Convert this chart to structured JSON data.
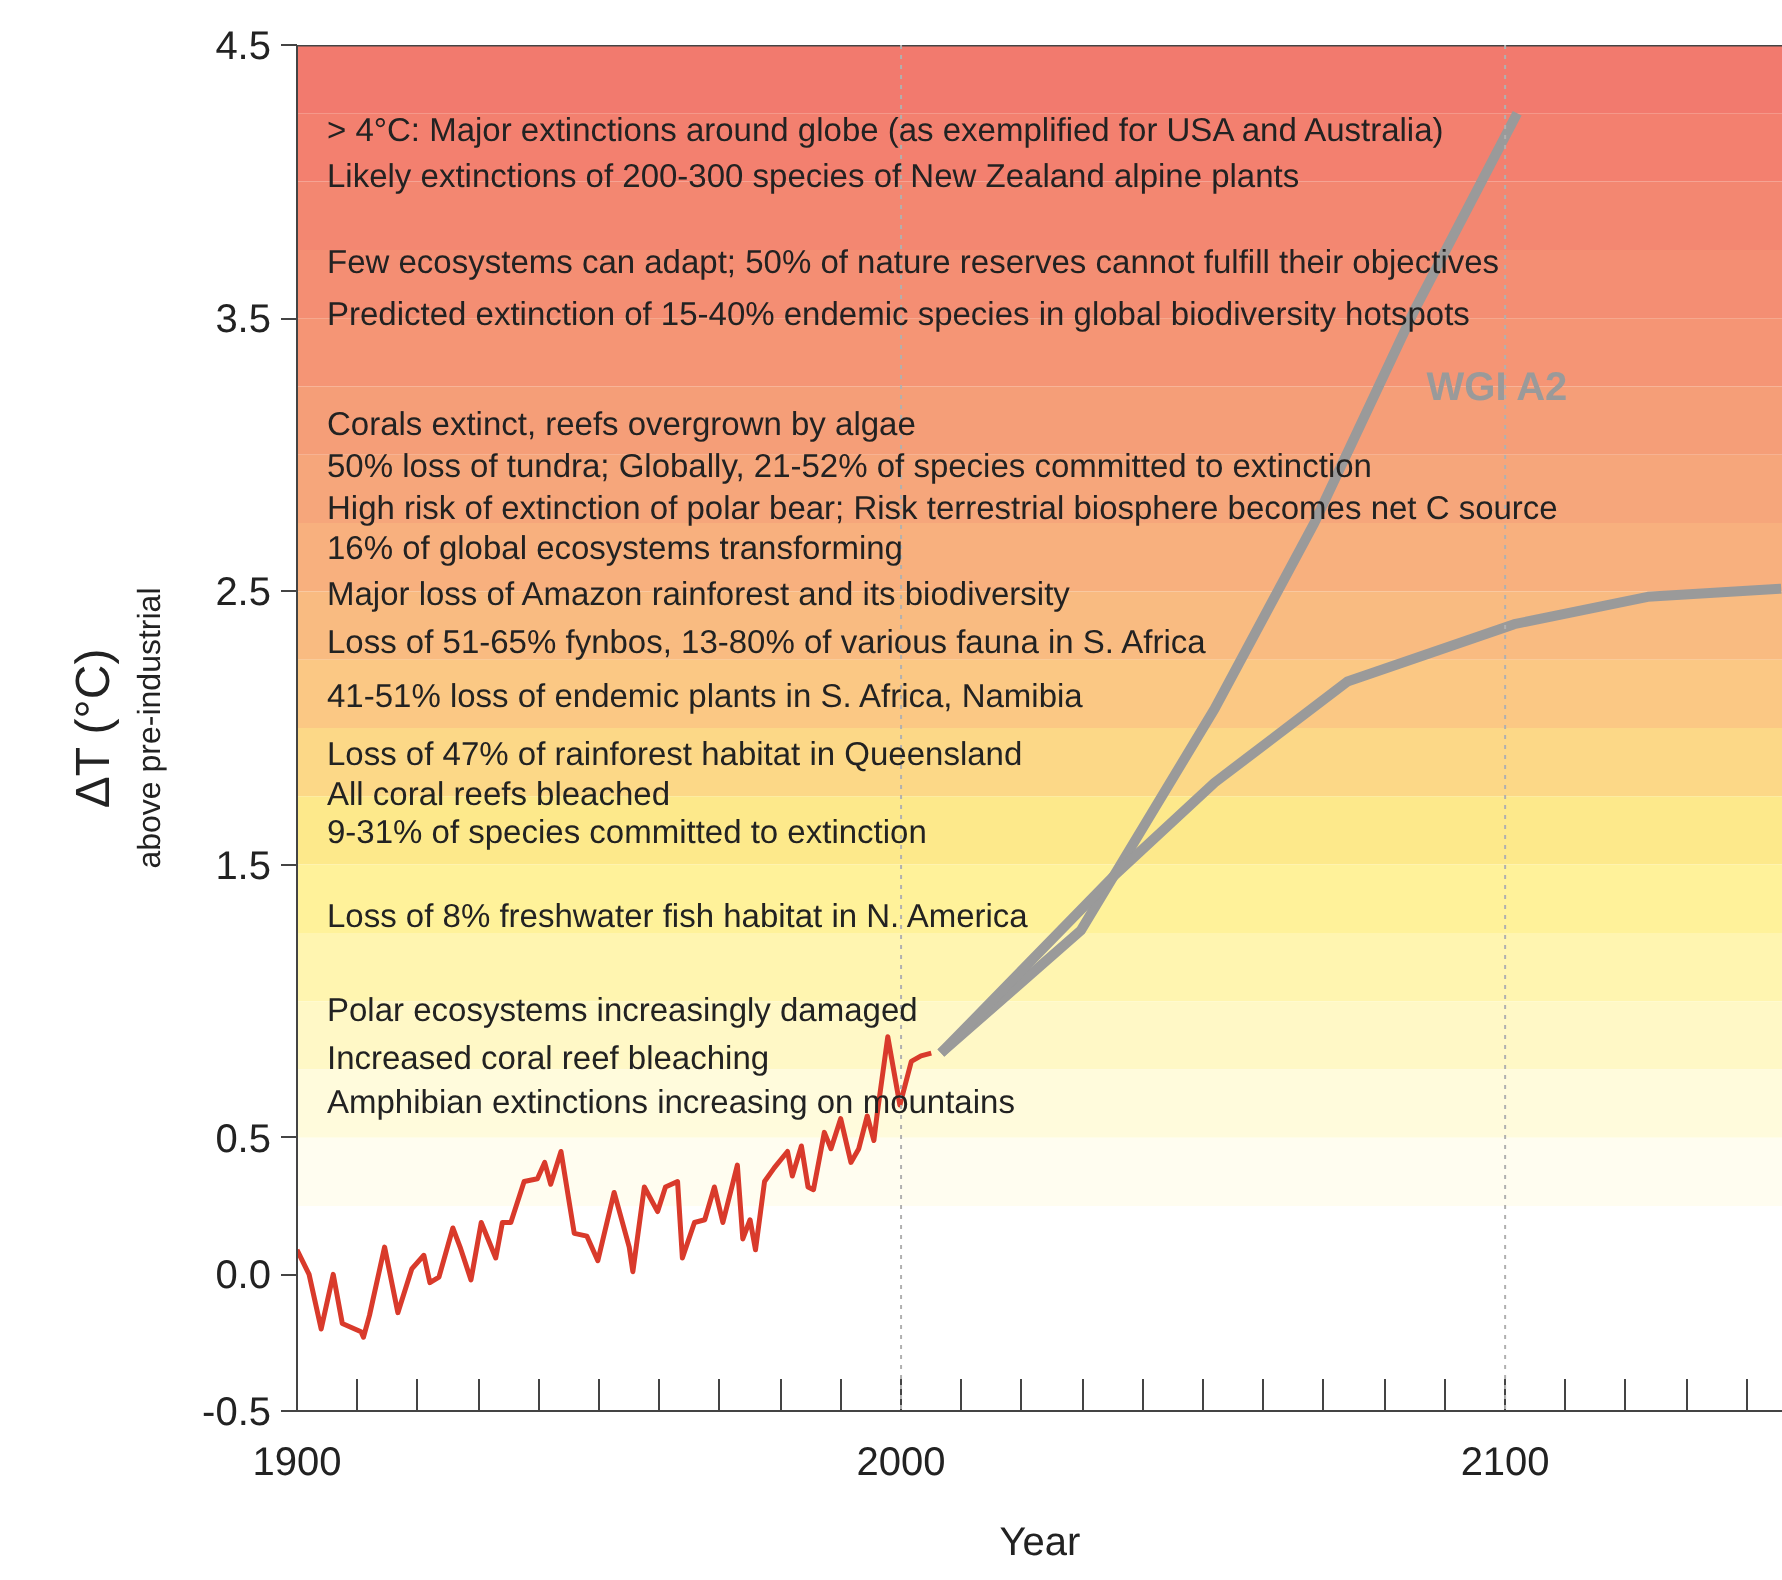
{
  "chart_data": {
    "type": "line",
    "xlabel": "Year",
    "ylabel": "ΔT (°C)",
    "xlim": [
      1900,
      2146
    ],
    "ylim": [
      -0.5,
      4.5
    ],
    "xticks": [
      1900,
      {
        "value": 1910,
        "label": null
      },
      {
        "value": 1920,
        "label": null
      },
      {
        "value": 1930,
        "label": null
      },
      {
        "value": 1940,
        "label": null
      },
      {
        "value": 1950,
        "label": null
      },
      {
        "value": 1960,
        "label": null
      },
      {
        "value": 1970,
        "label": null
      },
      {
        "value": 1980,
        "label": null
      },
      {
        "value": 1990,
        "label": null
      },
      2000,
      {
        "value": 2010,
        "label": null
      },
      {
        "value": 2020,
        "label": null
      },
      {
        "value": 2030,
        "label": null
      },
      {
        "value": 2040,
        "label": null
      },
      {
        "value": 2050,
        "label": null
      },
      {
        "value": 2060,
        "label": null
      },
      {
        "value": 2070,
        "label": null
      },
      {
        "value": 2080,
        "label": null
      },
      {
        "value": 2090,
        "label": null
      },
      2100,
      {
        "value": 2110,
        "label": null
      },
      {
        "value": 2120,
        "label": null
      },
      {
        "value": 2130,
        "label": null
      },
      {
        "value": 2140,
        "label": null
      }
    ],
    "yticks": [
      -0.5,
      {
        "value": 0,
        "label": "0.0"
      },
      0.5,
      1.5,
      2.5,
      3.5,
      4.5
    ],
    "grid": false,
    "marker": "none",
    "line_style": "solid",
    "series": [
      {
        "color": "#d93a2b",
        "x": [
          1900,
          1902,
          1904,
          1906,
          1907.5,
          1910.6,
          1911,
          1912,
          1914.5,
          1916.7,
          1919,
          1921,
          1922,
          1923.5,
          1925.8,
          1927,
          1928.8,
          1930.5,
          1932.9,
          1934,
          1935.4,
          1937.6,
          1939.8,
          1941,
          1942,
          1943.7,
          1945.9,
          1948,
          1949.8,
          1952.5,
          1955,
          1955.6,
          1957.5,
          1959.7,
          1961,
          1963,
          1963.8,
          1965.8,
          1967.5,
          1969.1,
          1970.5,
          1972.9,
          1973.8,
          1975,
          1975.9,
          1977.4,
          1979,
          1981.2,
          1982,
          1983.5,
          1984.6,
          1985.5,
          1987.3,
          1988.4,
          1990,
          1991.7,
          1993,
          1994.4,
          1995.5,
          1996,
          1997.8,
          1999.8,
          2001.7,
          2003.3,
          2005
        ],
        "values": [
          0.09,
          0.0,
          -0.2,
          0.0,
          -0.18,
          -0.21,
          -0.23,
          -0.15,
          0.1,
          -0.14,
          0.02,
          0.07,
          -0.03,
          -0.01,
          0.17,
          0.1,
          -0.02,
          0.19,
          0.06,
          0.19,
          0.19,
          0.34,
          0.35,
          0.41,
          0.33,
          0.45,
          0.15,
          0.14,
          0.05,
          0.3,
          0.1,
          0.01,
          0.32,
          0.23,
          0.32,
          0.34,
          0.06,
          0.19,
          0.2,
          0.32,
          0.19,
          0.4,
          0.13,
          0.2,
          0.09,
          0.34,
          0.39,
          0.45,
          0.36,
          0.47,
          0.32,
          0.31,
          0.52,
          0.46,
          0.57,
          0.41,
          0.46,
          0.58,
          0.49,
          0.58,
          0.87,
          0.62,
          0.78,
          0.8,
          0.81
        ]
      },
      {
        "name": "WGI A2",
        "color": "#9a9a9a",
        "x": [
          2006.6,
          2029.8,
          2051.9,
          2068.4,
          2085,
          2102
        ],
        "values": [
          0.81,
          1.26,
          2.07,
          2.75,
          3.53,
          4.25
        ]
      },
      {
        "color": "#9a9a9a",
        "x": [
          2006.6,
          2035.3,
          2051.9,
          2073.9,
          2101.5,
          2123.6,
          2145.7
        ],
        "values": [
          0.81,
          1.46,
          1.8,
          2.17,
          2.38,
          2.48,
          2.51
        ]
      }
    ],
    "ref_lines": [
      {
        "axis": "x",
        "value": 2000,
        "color": "#b0b0b0",
        "line_style": "dotted"
      },
      {
        "axis": "x",
        "value": 2100,
        "color": "#b0b0b0",
        "line_style": "dotted"
      }
    ],
    "bands": [
      {
        "axis": "y",
        "from": 4.25,
        "to": 4.5,
        "color": "#f27a6e"
      },
      {
        "axis": "y",
        "from": 4.0,
        "to": 4.25,
        "color": "#f3806f"
      },
      {
        "axis": "y",
        "from": 3.75,
        "to": 4.0,
        "color": "#f38771"
      },
      {
        "axis": "y",
        "from": 3.5,
        "to": 3.75,
        "color": "#f48e73"
      },
      {
        "axis": "y",
        "from": 3.25,
        "to": 3.5,
        "color": "#f59575"
      },
      {
        "axis": "y",
        "from": 3.0,
        "to": 3.25,
        "color": "#f59e78"
      },
      {
        "axis": "y",
        "from": 2.75,
        "to": 3.0,
        "color": "#f6a67b"
      },
      {
        "axis": "y",
        "from": 2.5,
        "to": 2.75,
        "color": "#f8b07e"
      },
      {
        "axis": "y",
        "from": 2.25,
        "to": 2.5,
        "color": "#f9bb81"
      },
      {
        "axis": "y",
        "from": 2.0,
        "to": 2.25,
        "color": "#fbc884"
      },
      {
        "axis": "y",
        "from": 1.75,
        "to": 2.0,
        "color": "#fcd887"
      },
      {
        "axis": "y",
        "from": 1.5,
        "to": 1.75,
        "color": "#fde98b"
      },
      {
        "axis": "y",
        "from": 1.25,
        "to": 1.5,
        "color": "#fff29a"
      },
      {
        "axis": "y",
        "from": 1.0,
        "to": 1.25,
        "color": "#fff5b0"
      },
      {
        "axis": "y",
        "from": 0.75,
        "to": 1.0,
        "color": "#fff8c6"
      },
      {
        "axis": "y",
        "from": 0.5,
        "to": 0.75,
        "color": "#fffbdc"
      },
      {
        "axis": "y",
        "from": 0.25,
        "to": 0.5,
        "color": "#fffdf0"
      }
    ],
    "annotations": [
      "above pre-industrial",
      "> 4°C: Major extinctions around globe (as exemplified for USA and Australia)",
      "Likely extinctions of 200-300 species of New Zealand alpine plants",
      "Few ecosystems can adapt;  50% of nature reserves cannot fulfill their objectives",
      "Predicted extinction of 15-40% endemic species in global biodiversity hotspots",
      "Corals extinct, reefs overgrown by algae",
      "50% loss of tundra;  Globally, 21-52% of species committed to extinction",
      "High risk of extinction of polar bear;  Risk terrestrial biosphere becomes net C source",
      "16% of global ecosystems transforming",
      "Major loss of Amazon rainforest and its biodiversity",
      "Loss of 51-65% fynbos, 13-80% of various fauna in S. Africa",
      "41-51% loss of endemic plants in S. Africa, Namibia",
      "Loss of 47% of rainforest habitat in Queensland",
      "All coral reefs bleached",
      "9-31% of species committed to extinction",
      "Loss of 8% freshwater fish habitat in N. America",
      "Polar ecosystems increasingly damaged",
      "Increased coral reef bleaching",
      "Amphibian extinctions increasing on mountains"
    ]
  }
}
